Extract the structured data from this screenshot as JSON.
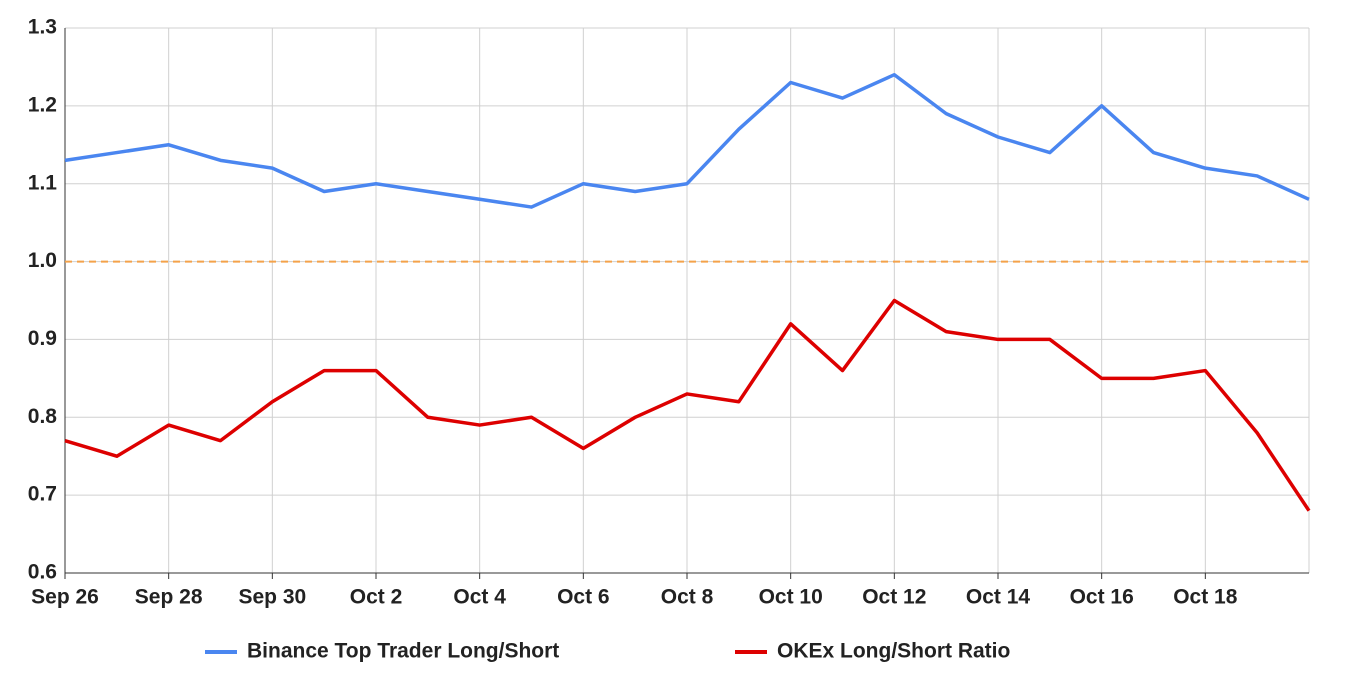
{
  "chart_data": {
    "type": "line",
    "categories": [
      "Sep 26",
      null,
      "Sep 28",
      null,
      "Sep 30",
      null,
      "Oct 2",
      null,
      "Oct 4",
      null,
      "Oct 6",
      null,
      "Oct 8",
      null,
      "Oct 10",
      null,
      "Oct 12",
      null,
      "Oct 14",
      null,
      "Oct 16",
      null,
      "Oct 18",
      null,
      null
    ],
    "series": [
      {
        "name": "Binance Top Trader Long/Short",
        "color": "#4a86f0",
        "values": [
          1.13,
          1.14,
          1.15,
          1.13,
          1.12,
          1.09,
          1.1,
          1.09,
          1.08,
          1.07,
          1.1,
          1.09,
          1.1,
          1.17,
          1.23,
          1.21,
          1.24,
          1.19,
          1.16,
          1.14,
          1.2,
          1.14,
          1.12,
          1.11,
          1.08
        ]
      },
      {
        "name": "OKEx Long/Short Ratio",
        "color": "#dd0000",
        "values": [
          0.77,
          0.75,
          0.79,
          0.77,
          0.82,
          0.86,
          0.86,
          0.8,
          0.79,
          0.8,
          0.76,
          0.8,
          0.83,
          0.82,
          0.92,
          0.86,
          0.95,
          0.91,
          0.9,
          0.9,
          0.85,
          0.85,
          0.86,
          0.78,
          0.68
        ]
      }
    ],
    "ylim": [
      0.6,
      1.3
    ],
    "yticks": [
      0.6,
      0.7,
      0.8,
      0.9,
      {
        "value": 1,
        "label": "1.0"
      },
      1.1,
      1.2,
      1.3
    ],
    "reference_line": {
      "value": 1,
      "color": "#f4a24a"
    },
    "grid": true,
    "legend": "bottom"
  }
}
